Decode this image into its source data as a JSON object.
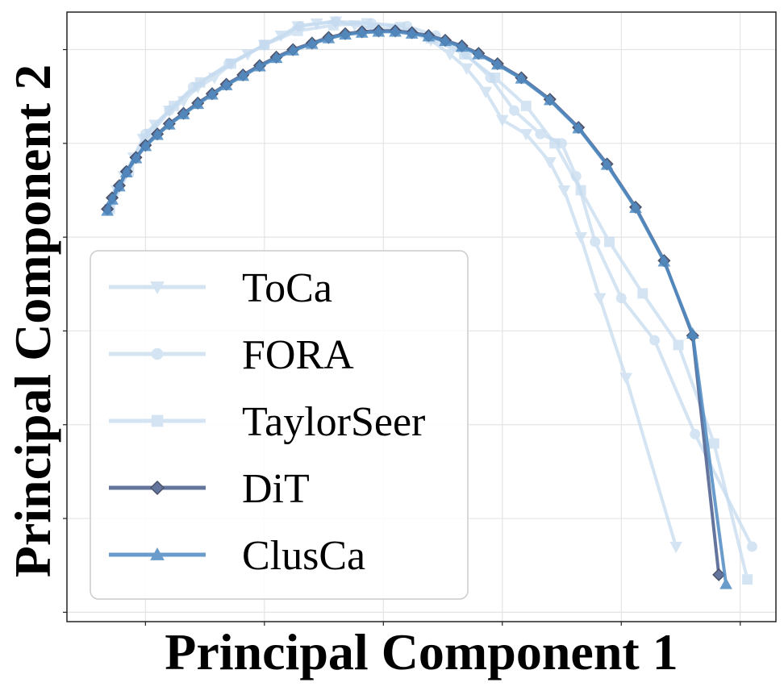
{
  "chart_data": {
    "type": "line",
    "title": "",
    "xlabel": "Principal Component 1",
    "ylabel": "Principal Component 2",
    "xlim": [
      -3.3,
      26.5
    ],
    "ylim": [
      -6.1,
      0.4
    ],
    "grid": true,
    "xticks": [
      0,
      5,
      10,
      15,
      20,
      25
    ],
    "yticks": [
      -6,
      -5,
      -4,
      -3,
      -2,
      -1,
      0
    ],
    "tick_labels_visible": false,
    "legend": {
      "placement": "lower-left"
    },
    "series": [
      {
        "name": "ToCa",
        "marker": "triangle-down",
        "color": "#c6dbef",
        "opacity": 0.75,
        "width": 4,
        "x": [
          -1.5,
          -1.2,
          -0.9,
          -0.5,
          -0.1,
          0.4,
          1.0,
          1.6,
          2.2,
          2.9,
          3.6,
          4.3,
          5.0,
          5.7,
          6.4,
          7.2,
          8.0,
          8.8,
          9.6,
          10.4,
          11.2,
          12.0,
          12.8,
          13.5,
          14.3,
          15.0,
          16.0,
          17.0,
          17.6,
          18.3,
          19.1,
          20.2,
          22.3
        ],
        "y": [
          -1.7,
          -1.5,
          -1.35,
          -1.15,
          -0.95,
          -0.8,
          -0.65,
          -0.55,
          -0.4,
          -0.3,
          -0.15,
          -0.05,
          0.05,
          0.15,
          0.25,
          0.28,
          0.3,
          0.26,
          0.22,
          0.22,
          0.18,
          0.1,
          -0.05,
          -0.2,
          -0.45,
          -0.75,
          -0.9,
          -1.2,
          -1.5,
          -2.0,
          -2.65,
          -3.5,
          -5.3
        ]
      },
      {
        "name": "FORA",
        "marker": "circle",
        "color": "#c6dbef",
        "opacity": 0.75,
        "width": 4,
        "x": [
          -1.5,
          -0.8,
          0.0,
          1.0,
          2.0,
          3.5,
          5.0,
          6.5,
          8.0,
          9.5,
          11.0,
          12.2,
          13.5,
          14.5,
          15.5,
          16.6,
          17.5,
          18.1,
          18.9,
          20.0,
          21.4,
          23.1,
          25.5
        ],
        "y": [
          -1.7,
          -1.3,
          -0.9,
          -0.65,
          -0.4,
          -0.15,
          0.05,
          0.25,
          0.3,
          0.28,
          0.25,
          0.15,
          -0.05,
          -0.3,
          -0.65,
          -0.9,
          -1.0,
          -1.35,
          -2.05,
          -2.65,
          -3.1,
          -4.1,
          -5.3
        ]
      },
      {
        "name": "TaylorSeer",
        "marker": "square",
        "color": "#c6dbef",
        "opacity": 0.75,
        "width": 4,
        "x": [
          -1.5,
          -0.7,
          0.2,
          1.2,
          2.3,
          3.6,
          5.0,
          6.4,
          7.9,
          9.3,
          10.7,
          12.0,
          13.4,
          14.7,
          16.0,
          17.2,
          18.3,
          19.5,
          20.9,
          22.4,
          23.9,
          25.3
        ],
        "y": [
          -1.7,
          -1.3,
          -0.9,
          -0.6,
          -0.35,
          -0.15,
          0.05,
          0.2,
          0.26,
          0.28,
          0.24,
          0.12,
          -0.05,
          -0.3,
          -0.6,
          -1.0,
          -1.5,
          -2.05,
          -2.6,
          -3.15,
          -4.2,
          -5.65
        ]
      },
      {
        "name": "DiT",
        "marker": "diamond",
        "color": "#4a5d8c",
        "opacity": 0.85,
        "width": 4,
        "x": [
          -1.6,
          -1.4,
          -1.1,
          -0.8,
          -0.4,
          0.0,
          0.5,
          1.0,
          1.6,
          2.2,
          2.8,
          3.4,
          4.1,
          4.8,
          5.5,
          6.2,
          7.0,
          7.7,
          8.4,
          9.1,
          9.8,
          10.5,
          11.2,
          11.9,
          12.6,
          13.3,
          14.0,
          14.8,
          15.8,
          17.0,
          18.2,
          19.4,
          20.6,
          21.8,
          23.0,
          24.1
        ],
        "y": [
          -1.7,
          -1.58,
          -1.45,
          -1.3,
          -1.15,
          -1.02,
          -0.9,
          -0.79,
          -0.68,
          -0.57,
          -0.47,
          -0.37,
          -0.27,
          -0.17,
          -0.08,
          0.0,
          0.07,
          0.13,
          0.17,
          0.19,
          0.2,
          0.2,
          0.18,
          0.15,
          0.1,
          0.04,
          -0.04,
          -0.15,
          -0.3,
          -0.53,
          -0.83,
          -1.22,
          -1.68,
          -2.25,
          -3.05,
          -5.6
        ]
      },
      {
        "name": "ClusCa",
        "marker": "triangle-up",
        "color": "#4f8bc2",
        "opacity": 0.85,
        "width": 4,
        "x": [
          -1.6,
          -1.4,
          -1.1,
          -0.8,
          -0.4,
          0.0,
          0.5,
          1.0,
          1.6,
          2.2,
          2.8,
          3.4,
          4.1,
          4.8,
          5.5,
          6.2,
          7.0,
          7.7,
          8.4,
          9.1,
          9.8,
          10.5,
          11.2,
          11.9,
          12.6,
          13.3,
          14.0,
          14.8,
          15.8,
          17.0,
          18.2,
          19.4,
          20.6,
          21.8,
          23.0,
          24.4
        ],
        "y": [
          -1.72,
          -1.6,
          -1.46,
          -1.31,
          -1.16,
          -1.03,
          -0.91,
          -0.8,
          -0.69,
          -0.58,
          -0.48,
          -0.38,
          -0.28,
          -0.18,
          -0.09,
          -0.01,
          0.06,
          0.12,
          0.16,
          0.18,
          0.19,
          0.19,
          0.17,
          0.14,
          0.09,
          0.03,
          -0.05,
          -0.16,
          -0.31,
          -0.54,
          -0.84,
          -1.23,
          -1.69,
          -2.26,
          -3.03,
          -5.7
        ]
      }
    ]
  }
}
